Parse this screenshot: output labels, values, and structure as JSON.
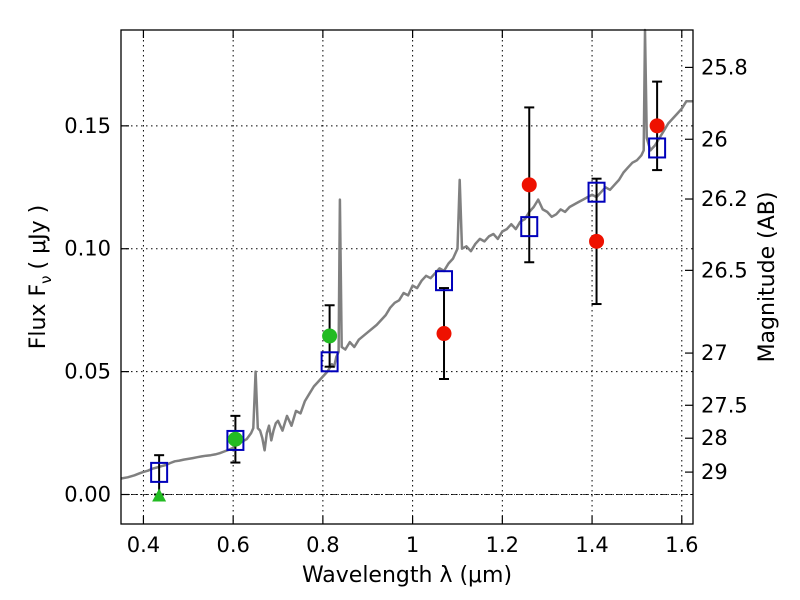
{
  "chart_data": {
    "type": "scatter",
    "title": "",
    "xlabel": "Wavelength  λ (μm)",
    "ylabel": "Flux  F",
    "ylabel_sub": "ν",
    "ylabel_unit": "( μJy )",
    "y2label": "Magnitude (AB)",
    "xlim": [
      0.35,
      1.625
    ],
    "ylim": [
      -0.012,
      0.189
    ],
    "x_ticks": [
      {
        "value": 0.4,
        "label": "0.4"
      },
      {
        "value": 0.6,
        "label": "0.6"
      },
      {
        "value": 0.8,
        "label": "0.8"
      },
      {
        "value": 1.0,
        "label": "1"
      },
      {
        "value": 1.2,
        "label": "1.2"
      },
      {
        "value": 1.4,
        "label": "1.4"
      },
      {
        "value": 1.6,
        "label": "1.6"
      }
    ],
    "y_ticks": [
      {
        "value": 0.0,
        "label": "0.00"
      },
      {
        "value": 0.05,
        "label": "0.05"
      },
      {
        "value": 0.1,
        "label": "0.10"
      },
      {
        "value": 0.15,
        "label": "0.15"
      }
    ],
    "y2_ticks": [
      {
        "value": 25.8,
        "label": "25.8"
      },
      {
        "value": 26.0,
        "label": "26"
      },
      {
        "value": 26.2,
        "label": "26.2"
      },
      {
        "value": 26.5,
        "label": "26.5"
      },
      {
        "value": 27.0,
        "label": "27"
      },
      {
        "value": 27.5,
        "label": "27.5"
      },
      {
        "value": 28.0,
        "label": "28"
      },
      {
        "value": 29.0,
        "label": "29"
      }
    ],
    "grid": true,
    "zero_line": 0.0,
    "colors": {
      "model": "#808080",
      "model_fit": "#0000bb",
      "hst": "#22bb22",
      "ir": "#ee1100",
      "errorbar": "#000000"
    },
    "series": [
      {
        "name": "SED model spectrum",
        "kind": "line",
        "points": [
          [
            0.35,
            0.0065
          ],
          [
            0.365,
            0.007
          ],
          [
            0.38,
            0.0078
          ],
          [
            0.39,
            0.0085
          ],
          [
            0.4,
            0.0092
          ],
          [
            0.41,
            0.0097
          ],
          [
            0.42,
            0.0105
          ],
          [
            0.43,
            0.011
          ],
          [
            0.44,
            0.0115
          ],
          [
            0.45,
            0.012
          ],
          [
            0.46,
            0.0128
          ],
          [
            0.47,
            0.0135
          ],
          [
            0.48,
            0.0138
          ],
          [
            0.49,
            0.0142
          ],
          [
            0.5,
            0.0145
          ],
          [
            0.51,
            0.0148
          ],
          [
            0.52,
            0.0152
          ],
          [
            0.53,
            0.0155
          ],
          [
            0.54,
            0.0158
          ],
          [
            0.55,
            0.016
          ],
          [
            0.56,
            0.0163
          ],
          [
            0.57,
            0.0168
          ],
          [
            0.58,
            0.0175
          ],
          [
            0.59,
            0.0182
          ],
          [
            0.6,
            0.019
          ],
          [
            0.61,
            0.0205
          ],
          [
            0.62,
            0.0215
          ],
          [
            0.63,
            0.0225
          ],
          [
            0.64,
            0.025
          ],
          [
            0.645,
            0.027
          ],
          [
            0.65,
            0.05
          ],
          [
            0.655,
            0.027
          ],
          [
            0.66,
            0.026
          ],
          [
            0.665,
            0.023
          ],
          [
            0.67,
            0.018
          ],
          [
            0.675,
            0.025
          ],
          [
            0.68,
            0.028
          ],
          [
            0.685,
            0.022
          ],
          [
            0.69,
            0.026
          ],
          [
            0.695,
            0.029
          ],
          [
            0.7,
            0.03
          ],
          [
            0.71,
            0.026
          ],
          [
            0.72,
            0.032
          ],
          [
            0.73,
            0.028
          ],
          [
            0.74,
            0.034
          ],
          [
            0.75,
            0.033
          ],
          [
            0.76,
            0.038
          ],
          [
            0.77,
            0.041
          ],
          [
            0.78,
            0.044
          ],
          [
            0.79,
            0.046
          ],
          [
            0.8,
            0.048
          ],
          [
            0.81,
            0.05
          ],
          [
            0.82,
            0.053
          ],
          [
            0.825,
            0.052
          ],
          [
            0.83,
            0.056
          ],
          [
            0.835,
            0.058
          ],
          [
            0.838,
            0.12
          ],
          [
            0.842,
            0.06
          ],
          [
            0.85,
            0.059
          ],
          [
            0.86,
            0.062
          ],
          [
            0.87,
            0.06
          ],
          [
            0.88,
            0.063
          ],
          [
            0.9,
            0.066
          ],
          [
            0.92,
            0.069
          ],
          [
            0.94,
            0.073
          ],
          [
            0.95,
            0.076
          ],
          [
            0.96,
            0.078
          ],
          [
            0.97,
            0.079
          ],
          [
            0.98,
            0.082
          ],
          [
            0.99,
            0.081
          ],
          [
            1.0,
            0.085
          ],
          [
            1.01,
            0.084
          ],
          [
            1.02,
            0.087
          ],
          [
            1.03,
            0.089
          ],
          [
            1.04,
            0.088
          ],
          [
            1.05,
            0.09
          ],
          [
            1.06,
            0.092
          ],
          [
            1.07,
            0.091
          ],
          [
            1.08,
            0.094
          ],
          [
            1.09,
            0.096
          ],
          [
            1.1,
            0.1
          ],
          [
            1.105,
            0.128
          ],
          [
            1.11,
            0.1
          ],
          [
            1.12,
            0.101
          ],
          [
            1.13,
            0.099
          ],
          [
            1.14,
            0.102
          ],
          [
            1.15,
            0.104
          ],
          [
            1.16,
            0.103
          ],
          [
            1.17,
            0.105
          ],
          [
            1.18,
            0.106
          ],
          [
            1.19,
            0.104
          ],
          [
            1.2,
            0.107
          ],
          [
            1.21,
            0.108
          ],
          [
            1.22,
            0.11
          ],
          [
            1.23,
            0.108
          ],
          [
            1.24,
            0.111
          ],
          [
            1.25,
            0.112
          ],
          [
            1.26,
            0.115
          ],
          [
            1.27,
            0.117
          ],
          [
            1.28,
            0.12
          ],
          [
            1.29,
            0.116
          ],
          [
            1.3,
            0.115
          ],
          [
            1.31,
            0.113
          ],
          [
            1.32,
            0.114
          ],
          [
            1.33,
            0.116
          ],
          [
            1.34,
            0.115
          ],
          [
            1.35,
            0.117
          ],
          [
            1.36,
            0.118
          ],
          [
            1.37,
            0.119
          ],
          [
            1.38,
            0.12
          ],
          [
            1.39,
            0.121
          ],
          [
            1.4,
            0.122
          ],
          [
            1.41,
            0.121
          ],
          [
            1.42,
            0.123
          ],
          [
            1.43,
            0.125
          ],
          [
            1.44,
            0.124
          ],
          [
            1.45,
            0.126
          ],
          [
            1.46,
            0.128
          ],
          [
            1.47,
            0.131
          ],
          [
            1.48,
            0.133
          ],
          [
            1.49,
            0.135
          ],
          [
            1.5,
            0.136
          ],
          [
            1.51,
            0.138
          ],
          [
            1.515,
            0.14
          ],
          [
            1.518,
            0.19
          ],
          [
            1.522,
            0.145
          ],
          [
            1.53,
            0.14
          ],
          [
            1.54,
            0.142
          ],
          [
            1.55,
            0.145
          ],
          [
            1.56,
            0.148
          ],
          [
            1.57,
            0.151
          ],
          [
            1.58,
            0.153
          ],
          [
            1.59,
            0.155
          ],
          [
            1.6,
            0.157
          ],
          [
            1.61,
            0.16
          ],
          [
            1.625,
            0.16
          ]
        ]
      },
      {
        "name": "Model photometry",
        "kind": "open-square",
        "x": [
          0.435,
          0.605,
          0.815,
          1.07,
          1.26,
          1.41,
          1.545
        ],
        "y": [
          0.009,
          0.022,
          0.054,
          0.087,
          0.109,
          0.123,
          0.141
        ]
      },
      {
        "name": "Optical detections",
        "kind": "filled-circle",
        "x": [
          0.605,
          0.815
        ],
        "y": [
          0.0225,
          0.0645
        ],
        "err": [
          0.0095,
          0.0125
        ]
      },
      {
        "name": "Optical upper limit",
        "kind": "filled-triangle",
        "x": [
          0.435
        ],
        "y": [
          0.0
        ],
        "err_low": [
          0.0
        ],
        "err_high": [
          0.016
        ]
      },
      {
        "name": "Near-IR detections",
        "kind": "filled-circle",
        "x": [
          1.07,
          1.26,
          1.41,
          1.545
        ],
        "y": [
          0.0655,
          0.126,
          0.103,
          0.15
        ],
        "err": [
          0.0185,
          0.0315,
          0.0255,
          0.018
        ]
      }
    ]
  }
}
